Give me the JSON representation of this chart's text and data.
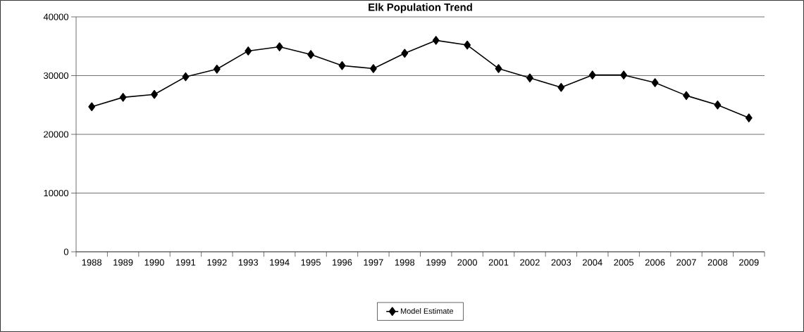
{
  "chart_data": {
    "type": "line",
    "title": "Elk Population Trend",
    "categories": [
      "1988",
      "1989",
      "1990",
      "1991",
      "1992",
      "1993",
      "1994",
      "1995",
      "1996",
      "1997",
      "1998",
      "1999",
      "2000",
      "2001",
      "2002",
      "2003",
      "2004",
      "2005",
      "2006",
      "2007",
      "2008",
      "2009"
    ],
    "series": [
      {
        "name": "Model Estimate",
        "color": "#000000",
        "values": [
          24700,
          26300,
          26800,
          29800,
          31100,
          34200,
          34900,
          33600,
          31700,
          31200,
          33800,
          36000,
          35200,
          31200,
          29600,
          28000,
          30100,
          30100,
          28800,
          26600,
          25000,
          22800
        ]
      }
    ],
    "ylim": [
      0,
      40000
    ],
    "yticks": [
      0,
      10000,
      20000,
      30000,
      40000
    ],
    "grid": "y",
    "legend": "bottom",
    "marker": "diamond",
    "line_style": "solid"
  }
}
